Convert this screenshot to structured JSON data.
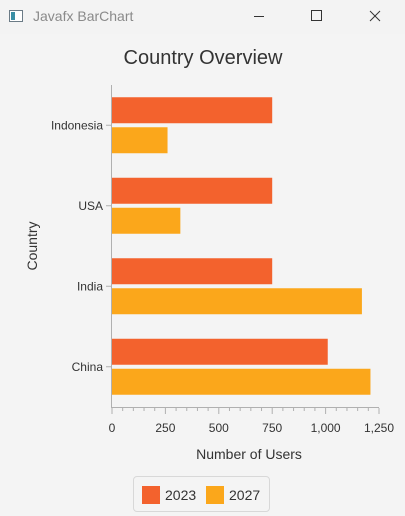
{
  "window": {
    "title": "Javafx BarChart",
    "icons": {
      "app": "app-icon",
      "minimize": "minimize-icon",
      "maximize": "maximize-icon",
      "close": "close-icon"
    }
  },
  "chart_data": {
    "type": "bar",
    "orientation": "horizontal",
    "title": "Country Overview",
    "xlabel": "Number of Users",
    "ylabel": "Country",
    "categories": [
      "Indonesia",
      "USA",
      "India",
      "China"
    ],
    "series": [
      {
        "name": "2023",
        "color": "#f3622d",
        "values": [
          750,
          750,
          750,
          1010
        ]
      },
      {
        "name": "2027",
        "color": "#fba71b",
        "values": [
          260,
          320,
          1170,
          1210
        ]
      }
    ],
    "xlim": [
      0,
      1250
    ],
    "xticks": [
      0,
      250,
      500,
      750,
      1000,
      1250
    ],
    "xtick_labels": [
      "0",
      "250",
      "500",
      "750",
      "1,000",
      "1,250"
    ],
    "grid": false,
    "legend": "bottom"
  }
}
